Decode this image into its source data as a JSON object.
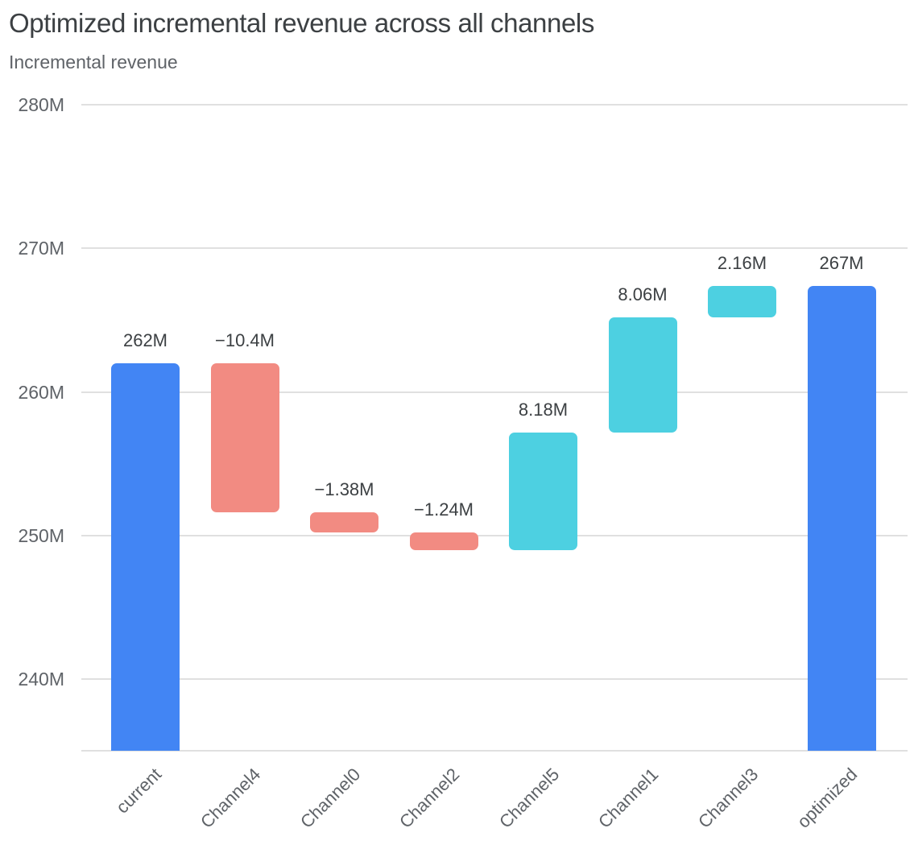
{
  "page": {
    "background": "#ffffff"
  },
  "chart_data": {
    "type": "bar",
    "subtype": "waterfall",
    "title": "Optimized incremental revenue across all channels",
    "y_axis_title": "Incremental revenue",
    "xlabel": "",
    "ylabel": "Incremental revenue",
    "categories": [
      "current",
      "Channel4",
      "Channel0",
      "Channel2",
      "Channel5",
      "Channel1",
      "Channel3",
      "optimized"
    ],
    "bar_types": [
      "total",
      "decrease",
      "decrease",
      "decrease",
      "increase",
      "increase",
      "increase",
      "total"
    ],
    "values": [
      262,
      -10.4,
      -1.38,
      -1.24,
      8.18,
      8.06,
      2.16,
      267.38
    ],
    "bar_labels": [
      "262M",
      "−10.4M",
      "−1.38M",
      "−1.24M",
      "8.18M",
      "8.06M",
      "2.16M",
      "267M"
    ],
    "cumulative": [
      262,
      251.6,
      250.22,
      248.98,
      257.16,
      265.22,
      267.38,
      267.38
    ],
    "y_ticks": [
      {
        "value": 280,
        "label": "280M"
      },
      {
        "value": 270,
        "label": "270M"
      },
      {
        "value": 260,
        "label": "260M"
      },
      {
        "value": 250,
        "label": "250M"
      },
      {
        "value": 240,
        "label": "240M"
      }
    ],
    "ylim": [
      235,
      281.4
    ],
    "baseline_value": 235,
    "grid": true,
    "legend_position": "none",
    "colors": {
      "total": "#4285F4",
      "decrease": "#F28B82",
      "increase": "#4DD0E1"
    },
    "gridline_color": "#e0e0e0",
    "text_colors": {
      "title": "#3c4043",
      "axis": "#5f6368",
      "data_label": "#3c4043"
    }
  }
}
